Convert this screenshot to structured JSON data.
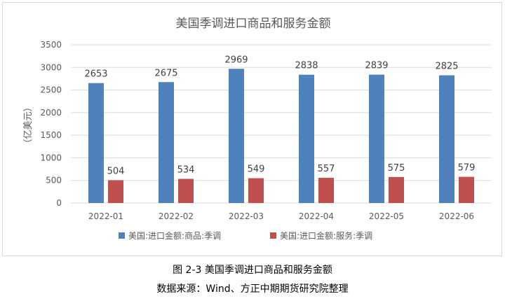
{
  "figure_caption": "图 2-3 美国季调进口商品和服务金额",
  "source_caption": "数据来源：Wind、方正中期期货研究院整理",
  "colors": {
    "goods": "#4f81bd",
    "services": "#c0504d",
    "grid": "#d9d9d9",
    "axis_text": "#595959"
  },
  "chart_data": {
    "type": "bar",
    "title": "美国季调进口商品和服务金额",
    "ylabel": "（亿美元）",
    "xlabel": "",
    "categories": [
      "2022-01",
      "2022-02",
      "2022-03",
      "2022-04",
      "2022-05",
      "2022-06"
    ],
    "series": [
      {
        "name": "美国:进口金额:商品:季调",
        "values": [
          2653,
          2675,
          2969,
          2838,
          2839,
          2825
        ]
      },
      {
        "name": "美国:进口金额:服务:季调",
        "values": [
          504,
          534,
          549,
          557,
          575,
          579
        ]
      }
    ],
    "ylim": [
      0,
      3500
    ],
    "yticks": [
      0,
      500,
      1000,
      1500,
      2000,
      2500,
      3000,
      3500
    ],
    "grid": true,
    "legend": "bottom"
  }
}
